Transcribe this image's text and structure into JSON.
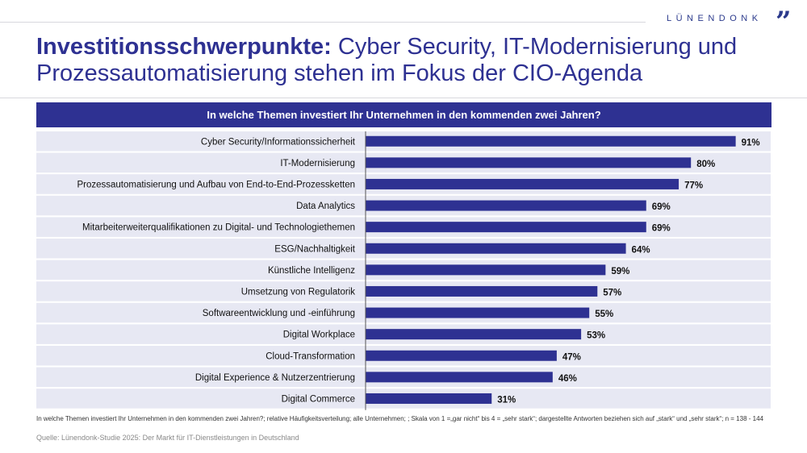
{
  "brand": {
    "name": "LÜNENDONK",
    "mark": "”"
  },
  "title": {
    "bold": "Investitionsschwerpunkte:",
    "rest": " Cyber Security, IT-Modernisierung und Prozessautomatisierung stehen im Fokus der CIO-Agenda"
  },
  "colors": {
    "accent": "#2e3192",
    "row_band": "#e7e8f3",
    "bar": "#2e3192"
  },
  "chart_data": {
    "type": "bar",
    "orientation": "horizontal",
    "title": "In welche Themen investiert Ihr Unternehmen in den kommenden zwei Jahren?",
    "value_suffix": "%",
    "xlim": [
      0,
      100
    ],
    "categories": [
      "Cyber Security/Informationssicherheit",
      "IT-Modernisierung",
      "Prozessautomatisierung und Aufbau von End-to-End-Prozessketten",
      "Data Analytics",
      "Mitarbeiterweiterqualifikationen zu Digital- und Technologiethemen",
      "ESG/Nachhaltigkeit",
      "Künstliche Intelligenz",
      "Umsetzung von Regulatorik",
      "Softwareentwicklung und -einführung",
      "Digital Workplace",
      "Cloud-Transformation",
      "Digital Experience & Nutzerzentrierung",
      "Digital Commerce"
    ],
    "values": [
      91,
      80,
      77,
      69,
      69,
      64,
      59,
      57,
      55,
      53,
      47,
      46,
      31
    ]
  },
  "footnote": "In welche Themen investiert Ihr Unternehmen in den kommenden zwei Jahren?; relative Häufigkeitsverteilung; alle Unternehmen; ; Skala von 1 =„gar nicht“ bis 4 = „sehr stark“; dargestellte Antworten beziehen sich auf „stark“ und „sehr stark“; n = 138 - 144",
  "source": "Quelle: Lünendonk-Studie 2025: Der Markt für IT-Dienstleistungen in Deutschland"
}
